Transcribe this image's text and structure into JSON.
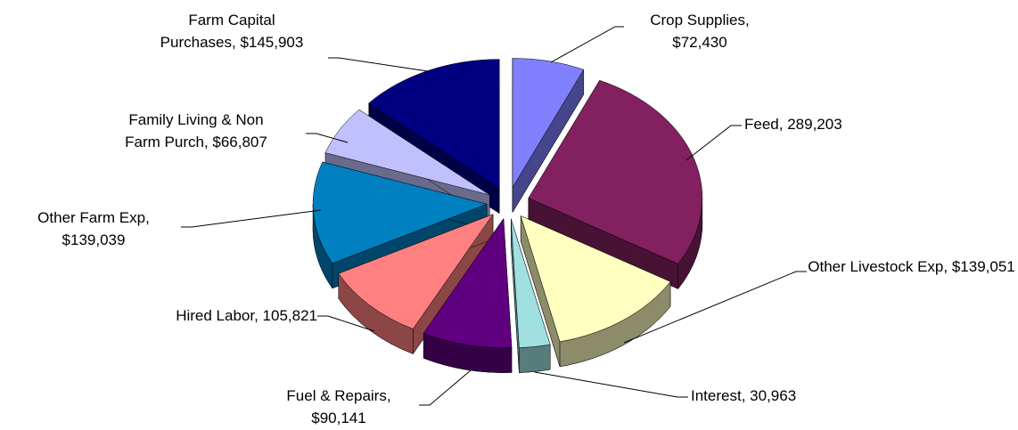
{
  "chart_data": {
    "type": "pie3d",
    "categories": [
      "Crop Supplies",
      "Feed",
      "Other Livestock Exp",
      "Interest",
      "Fuel & Repairs",
      "Hired Labor",
      "Other Farm Exp",
      "Family Living & Non Farm Purch",
      "Farm Capital Purchases"
    ],
    "values": [
      72430,
      289203,
      139051,
      30963,
      90141,
      105821,
      139039,
      66807,
      145903
    ],
    "value_labels": [
      "$72,430",
      "289,203",
      "$139,051",
      "30,963",
      "$90,141",
      "105,821",
      "$139,039",
      "$66,807",
      "$145,903"
    ],
    "label_separator": ", ",
    "colors": [
      "#8080ff",
      "#822060",
      "#ffffc0",
      "#a0e0e0",
      "#600080",
      "#ff8080",
      "#0080c0",
      "#c0c0ff",
      "#000080"
    ]
  }
}
